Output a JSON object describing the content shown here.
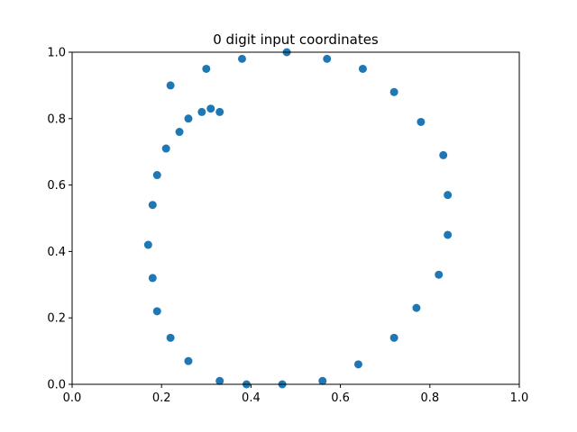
{
  "chart_data": {
    "type": "scatter",
    "title": "0 digit input coordinates",
    "xlabel": "",
    "ylabel": "",
    "xlim": [
      0,
      1
    ],
    "ylim": [
      0,
      1
    ],
    "xticks": [
      "0.0",
      "0.2",
      "0.4",
      "0.6",
      "0.8",
      "1.0"
    ],
    "yticks": [
      "0.0",
      "0.2",
      "0.4",
      "0.6",
      "0.8",
      "1.0"
    ],
    "grid": false,
    "marker_color": "#1f77b4",
    "points": [
      {
        "x": 0.48,
        "y": 1.0
      },
      {
        "x": 0.57,
        "y": 0.98
      },
      {
        "x": 0.65,
        "y": 0.95
      },
      {
        "x": 0.72,
        "y": 0.88
      },
      {
        "x": 0.78,
        "y": 0.79
      },
      {
        "x": 0.83,
        "y": 0.69
      },
      {
        "x": 0.84,
        "y": 0.57
      },
      {
        "x": 0.84,
        "y": 0.45
      },
      {
        "x": 0.82,
        "y": 0.33
      },
      {
        "x": 0.77,
        "y": 0.23
      },
      {
        "x": 0.72,
        "y": 0.14
      },
      {
        "x": 0.64,
        "y": 0.06
      },
      {
        "x": 0.56,
        "y": 0.01
      },
      {
        "x": 0.47,
        "y": 0.0
      },
      {
        "x": 0.39,
        "y": 0.0
      },
      {
        "x": 0.33,
        "y": 0.01
      },
      {
        "x": 0.26,
        "y": 0.07
      },
      {
        "x": 0.22,
        "y": 0.14
      },
      {
        "x": 0.19,
        "y": 0.22
      },
      {
        "x": 0.18,
        "y": 0.32
      },
      {
        "x": 0.17,
        "y": 0.42
      },
      {
        "x": 0.18,
        "y": 0.54
      },
      {
        "x": 0.19,
        "y": 0.63
      },
      {
        "x": 0.21,
        "y": 0.71
      },
      {
        "x": 0.24,
        "y": 0.76
      },
      {
        "x": 0.26,
        "y": 0.8
      },
      {
        "x": 0.29,
        "y": 0.82
      },
      {
        "x": 0.31,
        "y": 0.83
      },
      {
        "x": 0.33,
        "y": 0.82
      },
      {
        "x": 0.22,
        "y": 0.9
      },
      {
        "x": 0.3,
        "y": 0.95
      },
      {
        "x": 0.38,
        "y": 0.98
      }
    ]
  }
}
